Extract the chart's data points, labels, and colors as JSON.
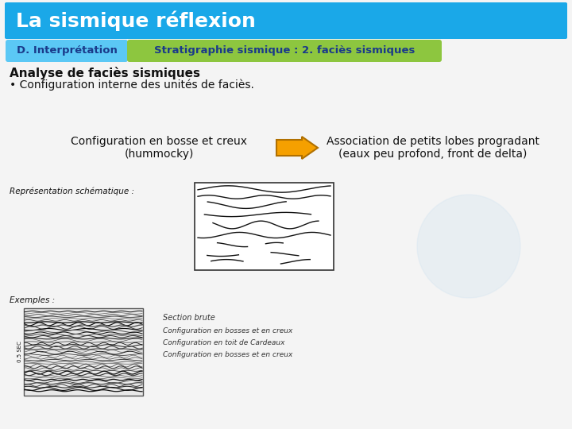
{
  "title": "La sismique réflexion",
  "title_bg": "#1aa8e8",
  "title_color": "#ffffff",
  "subtitle_left": "D. Interprétation",
  "subtitle_left_bg": "#5bc8f5",
  "subtitle_left_color": "#1a3a8a",
  "subtitle_right": "Stratigraphie sismique : 2. faciès sismiques",
  "subtitle_right_bg": "#8dc63f",
  "subtitle_right_color": "#1a3a8a",
  "section_title": "Analyse de faciès sismiques",
  "bullet": "• Configuration interne des unités de faciès.",
  "left_label_line1": "Configuration en bosse et creux",
  "left_label_line2": "(hummocky)",
  "right_label_line1": "Association de petits lobes progradant",
  "right_label_line2": "(eaux peu profond, front de delta)",
  "arrow_color": "#f5a000",
  "arrow_edge_color": "#b07000",
  "schematic_label": "Représentation schématique :",
  "examples_label": "Exemples :",
  "bg_color": "#f4f4f4",
  "text_color": "#111111",
  "dark_text": "#111111",
  "sec_label": "0.5 SEC",
  "section_brute": "Section brute",
  "annot1": "Configuration en bosses et en creux",
  "annot2": "Configuration en toit de Cardeaux",
  "annot3": "Configuration en bosses et en creux"
}
